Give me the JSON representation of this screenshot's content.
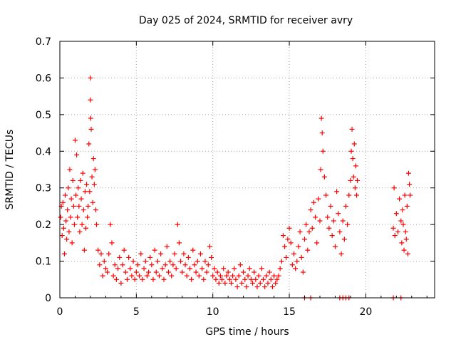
{
  "chart_data": {
    "type": "scatter",
    "title": "Day 025 of 2024, SRMTID for receiver avry",
    "xlabel": "GPS time / hours",
    "ylabel": "SRMTID / TECUs",
    "xlim": [
      0,
      24.5
    ],
    "ylim": [
      0,
      0.7
    ],
    "xticks": [
      0,
      5,
      10,
      15,
      20
    ],
    "yticks": [
      0,
      0.1,
      0.2,
      0.3,
      0.4,
      0.5,
      0.6,
      0.7
    ],
    "ytick_labels": [
      "0",
      "0.1",
      "0.2",
      "0.3",
      "0.4",
      "0.5",
      "0.6",
      "0.7"
    ],
    "grid": true,
    "marker": "+",
    "series": [
      {
        "name": "avry",
        "color": "#ff0000",
        "x": [
          0.05,
          0.1,
          0.15,
          0.2,
          0.25,
          0.3,
          0.35,
          0.4,
          0.45,
          0.5,
          0.55,
          0.6,
          0.65,
          0.7,
          0.75,
          0.8,
          0.85,
          0.9,
          0.95,
          1.0,
          1.05,
          1.1,
          1.15,
          1.2,
          1.25,
          1.3,
          1.35,
          1.4,
          1.45,
          1.5,
          1.55,
          1.6,
          1.65,
          1.7,
          1.75,
          1.8,
          1.85,
          1.9,
          1.95,
          2.0,
          2.0,
          2.02,
          2.05,
          2.1,
          2.15,
          2.2,
          2.25,
          2.3,
          2.35,
          2.4,
          2.5,
          2.6,
          2.7,
          2.8,
          2.9,
          3.0,
          3.1,
          3.2,
          3.3,
          3.4,
          3.5,
          3.6,
          3.7,
          3.8,
          3.9,
          4.0,
          4.1,
          4.2,
          4.3,
          4.4,
          4.5,
          4.6,
          4.7,
          4.8,
          4.9,
          5.0,
          5.1,
          5.2,
          5.3,
          5.4,
          5.5,
          5.6,
          5.7,
          5.8,
          5.9,
          6.0,
          6.1,
          6.2,
          6.3,
          6.4,
          6.5,
          6.6,
          6.7,
          6.8,
          6.9,
          7.0,
          7.1,
          7.2,
          7.3,
          7.4,
          7.5,
          7.6,
          7.7,
          7.8,
          7.9,
          8.0,
          8.1,
          8.2,
          8.3,
          8.4,
          8.5,
          8.6,
          8.7,
          8.8,
          8.9,
          9.0,
          9.1,
          9.2,
          9.3,
          9.4,
          9.5,
          9.6,
          9.7,
          9.8,
          9.9,
          10.0,
          10.1,
          10.2,
          10.3,
          10.4,
          10.5,
          10.6,
          10.7,
          10.8,
          10.9,
          11.0,
          11.1,
          11.2,
          11.3,
          11.4,
          11.5,
          11.6,
          11.7,
          11.8,
          11.9,
          12.0,
          12.1,
          12.2,
          12.3,
          12.4,
          12.5,
          12.6,
          12.7,
          12.8,
          12.9,
          13.0,
          13.1,
          13.2,
          13.3,
          13.4,
          13.5,
          13.6,
          13.7,
          13.8,
          13.9,
          14.0,
          14.1,
          14.2,
          14.3,
          14.4,
          14.5,
          14.6,
          14.7,
          14.8,
          14.9,
          15.0,
          15.1,
          15.2,
          15.3,
          15.4,
          15.5,
          15.6,
          15.7,
          15.8,
          15.9,
          16.0,
          16.1,
          16.2,
          16.3,
          16.4,
          16.5,
          16.6,
          16.7,
          16.8,
          16.9,
          17.0,
          17.05,
          17.1,
          17.15,
          17.2,
          17.3,
          17.4,
          17.5,
          17.6,
          17.7,
          17.8,
          17.9,
          18.0,
          18.1,
          18.2,
          18.3,
          18.4,
          18.5,
          18.6,
          18.7,
          18.8,
          18.9,
          19.0,
          19.05,
          19.1,
          19.15,
          19.2,
          19.25,
          19.3,
          19.35,
          19.4,
          19.45,
          21.8,
          21.85,
          21.9,
          22.0,
          22.1,
          22.2,
          22.3,
          22.35,
          22.4,
          22.45,
          22.5,
          22.55,
          22.6,
          22.65,
          22.7,
          22.75,
          22.8,
          22.85,
          22.9,
          16.0,
          16.4,
          18.3,
          18.5,
          18.7,
          18.9,
          21.8,
          22.3
        ],
        "y": [
          0.22,
          0.25,
          0.17,
          0.26,
          0.19,
          0.12,
          0.28,
          0.21,
          0.16,
          0.24,
          0.3,
          0.18,
          0.35,
          0.22,
          0.27,
          0.15,
          0.32,
          0.25,
          0.2,
          0.43,
          0.28,
          0.39,
          0.22,
          0.3,
          0.25,
          0.18,
          0.32,
          0.27,
          0.2,
          0.34,
          0.24,
          0.13,
          0.29,
          0.19,
          0.31,
          0.22,
          0.25,
          0.42,
          0.29,
          0.6,
          0.54,
          0.49,
          0.46,
          0.33,
          0.26,
          0.38,
          0.31,
          0.35,
          0.24,
          0.2,
          0.13,
          0.09,
          0.12,
          0.06,
          0.1,
          0.08,
          0.07,
          0.12,
          0.2,
          0.15,
          0.06,
          0.09,
          0.05,
          0.08,
          0.11,
          0.04,
          0.09,
          0.13,
          0.07,
          0.05,
          0.11,
          0.08,
          0.06,
          0.1,
          0.05,
          0.07,
          0.09,
          0.06,
          0.12,
          0.05,
          0.08,
          0.1,
          0.06,
          0.07,
          0.11,
          0.09,
          0.05,
          0.13,
          0.07,
          0.1,
          0.06,
          0.12,
          0.08,
          0.05,
          0.09,
          0.14,
          0.07,
          0.1,
          0.06,
          0.09,
          0.12,
          0.08,
          0.2,
          0.15,
          0.1,
          0.07,
          0.12,
          0.09,
          0.06,
          0.11,
          0.08,
          0.05,
          0.13,
          0.09,
          0.07,
          0.1,
          0.06,
          0.12,
          0.08,
          0.05,
          0.1,
          0.07,
          0.09,
          0.14,
          0.11,
          0.06,
          0.08,
          0.05,
          0.07,
          0.04,
          0.06,
          0.05,
          0.08,
          0.04,
          0.06,
          0.07,
          0.05,
          0.04,
          0.06,
          0.08,
          0.05,
          0.03,
          0.06,
          0.09,
          0.04,
          0.07,
          0.05,
          0.03,
          0.06,
          0.08,
          0.05,
          0.04,
          0.07,
          0.05,
          0.03,
          0.06,
          0.04,
          0.08,
          0.05,
          0.03,
          0.06,
          0.04,
          0.07,
          0.05,
          0.03,
          0.06,
          0.04,
          0.05,
          0.06,
          0.08,
          0.1,
          0.17,
          0.14,
          0.11,
          0.16,
          0.19,
          0.15,
          0.09,
          0.12,
          0.08,
          0.1,
          0.14,
          0.18,
          0.11,
          0.07,
          0.16,
          0.2,
          0.13,
          0.18,
          0.24,
          0.19,
          0.26,
          0.22,
          0.15,
          0.27,
          0.21,
          0.35,
          0.49,
          0.45,
          0.4,
          0.33,
          0.28,
          0.22,
          0.19,
          0.25,
          0.17,
          0.21,
          0.14,
          0.29,
          0.23,
          0.18,
          0.12,
          0.21,
          0.16,
          0.25,
          0.2,
          0.28,
          0.32,
          0.4,
          0.46,
          0.38,
          0.33,
          0.42,
          0.3,
          0.36,
          0.28,
          0.32,
          0.19,
          0.3,
          0.17,
          0.23,
          0.18,
          0.27,
          0.21,
          0.15,
          0.24,
          0.2,
          0.13,
          0.28,
          0.18,
          0.16,
          0.25,
          0.12,
          0.34,
          0.31,
          0.28,
          0,
          0,
          0,
          0,
          0,
          0,
          0,
          0
        ]
      }
    ]
  }
}
